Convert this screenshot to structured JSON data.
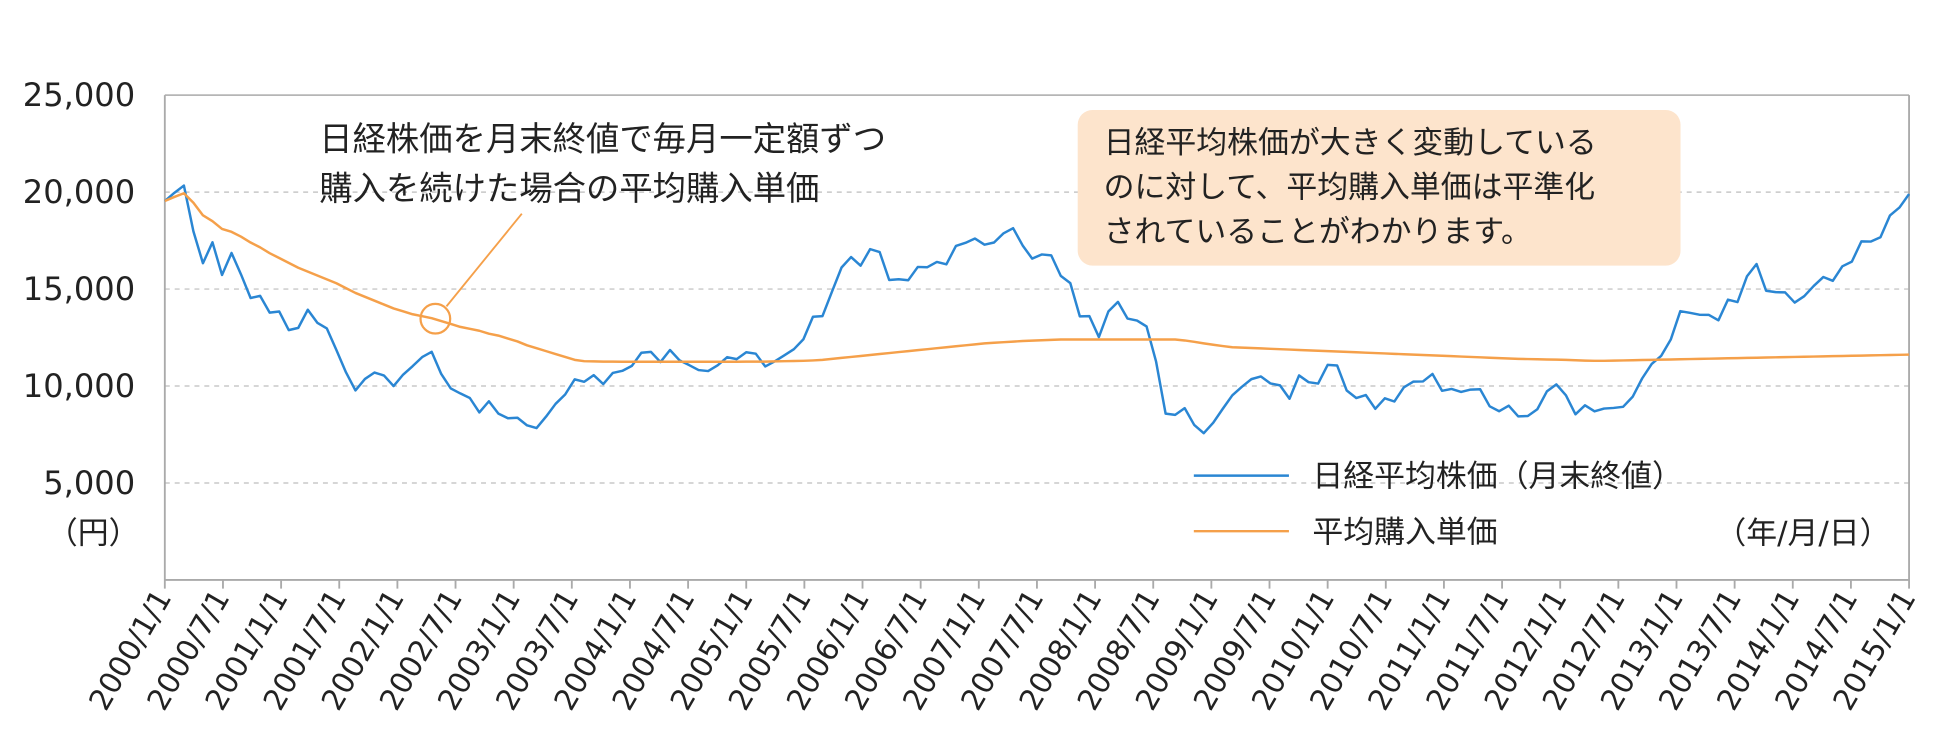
{
  "chart_data": {
    "type": "line",
    "unit_label": "（円）",
    "x_unit_label": "（年/月/日）",
    "annotation": [
      "日経株価を月末終値で毎月一定額ずつ",
      "購入を続けた場合の平均購入単価"
    ],
    "callout": [
      "日経平均株価が大きく変動している",
      "のに対して、平均購入単価は平準化",
      "されていることがわかります。"
    ],
    "ylim": [
      0,
      25000
    ],
    "yticks": [
      {
        "value": 5000,
        "label": "5,000"
      },
      {
        "value": 10000,
        "label": "10,000"
      },
      {
        "value": 15000,
        "label": "15,000"
      },
      {
        "value": 20000,
        "label": "20,000"
      },
      {
        "value": 25000,
        "label": "25,000"
      }
    ],
    "grid": true,
    "xticks": [
      "2000/1/1",
      "2000/7/1",
      "2001/1/1",
      "2001/7/1",
      "2002/1/1",
      "2002/7/1",
      "2003/1/1",
      "2003/7/1",
      "2004/1/1",
      "2004/7/1",
      "2005/1/1",
      "2005/7/1",
      "2006/1/1",
      "2006/7/1",
      "2007/1/1",
      "2007/7/1",
      "2008/1/1",
      "2008/7/1",
      "2009/1/1",
      "2009/7/1",
      "2010/1/1",
      "2010/7/1",
      "2011/1/1",
      "2011/7/1",
      "2012/1/1",
      "2012/7/1",
      "2013/1/1",
      "2013/7/1",
      "2014/1/1",
      "2014/7/1",
      "2015/1/1"
    ],
    "x": [
      "2000/1/1",
      "2000/2/1",
      "2000/3/1",
      "2000/4/1",
      "2000/5/1",
      "2000/6/1",
      "2000/7/1",
      "2000/8/1",
      "2000/9/1",
      "2000/10/1",
      "2000/11/1",
      "2000/12/1",
      "2001/1/1",
      "2001/2/1",
      "2001/3/1",
      "2001/4/1",
      "2001/5/1",
      "2001/6/1",
      "2001/7/1",
      "2001/8/1",
      "2001/9/1",
      "2001/10/1",
      "2001/11/1",
      "2001/12/1",
      "2002/1/1",
      "2002/2/1",
      "2002/3/1",
      "2002/4/1",
      "2002/5/1",
      "2002/6/1",
      "2002/7/1",
      "2002/8/1",
      "2002/9/1",
      "2002/10/1",
      "2002/11/1",
      "2002/12/1",
      "2003/1/1",
      "2003/2/1",
      "2003/3/1",
      "2003/4/1",
      "2003/5/1",
      "2003/6/1",
      "2003/7/1",
      "2003/8/1",
      "2003/9/1",
      "2003/10/1",
      "2003/11/1",
      "2003/12/1",
      "2004/1/1",
      "2004/2/1",
      "2004/3/1",
      "2004/4/1",
      "2004/5/1",
      "2004/6/1",
      "2004/7/1",
      "2004/8/1",
      "2004/9/1",
      "2004/10/1",
      "2004/11/1",
      "2004/12/1",
      "2005/1/1",
      "2005/2/1",
      "2005/3/1",
      "2005/4/1",
      "2005/5/1",
      "2005/6/1",
      "2005/7/1",
      "2005/8/1",
      "2005/9/1",
      "2005/10/1",
      "2005/11/1",
      "2005/12/1",
      "2006/1/1",
      "2006/2/1",
      "2006/3/1",
      "2006/4/1",
      "2006/5/1",
      "2006/6/1",
      "2006/7/1",
      "2006/8/1",
      "2006/9/1",
      "2006/10/1",
      "2006/11/1",
      "2006/12/1",
      "2007/1/1",
      "2007/2/1",
      "2007/3/1",
      "2007/4/1",
      "2007/5/1",
      "2007/6/1",
      "2007/7/1",
      "2007/8/1",
      "2007/9/1",
      "2007/10/1",
      "2007/11/1",
      "2007/12/1",
      "2008/1/1",
      "2008/2/1",
      "2008/3/1",
      "2008/4/1",
      "2008/5/1",
      "2008/6/1",
      "2008/7/1",
      "2008/8/1",
      "2008/9/1",
      "2008/10/1",
      "2008/11/1",
      "2008/12/1",
      "2009/1/1",
      "2009/2/1",
      "2009/3/1",
      "2009/4/1",
      "2009/5/1",
      "2009/6/1",
      "2009/7/1",
      "2009/8/1",
      "2009/9/1",
      "2009/10/1",
      "2009/11/1",
      "2009/12/1",
      "2010/1/1",
      "2010/2/1",
      "2010/3/1",
      "2010/4/1",
      "2010/5/1",
      "2010/6/1",
      "2010/7/1",
      "2010/8/1",
      "2010/9/1",
      "2010/10/1",
      "2010/11/1",
      "2010/12/1",
      "2011/1/1",
      "2011/2/1",
      "2011/3/1",
      "2011/4/1",
      "2011/5/1",
      "2011/6/1",
      "2011/7/1",
      "2011/8/1",
      "2011/9/1",
      "2011/10/1",
      "2011/11/1",
      "2011/12/1",
      "2012/1/1",
      "2012/2/1",
      "2012/3/1",
      "2012/4/1",
      "2012/5/1",
      "2012/6/1",
      "2012/7/1",
      "2012/8/1",
      "2012/9/1",
      "2012/10/1",
      "2012/11/1",
      "2012/12/1",
      "2013/1/1",
      "2013/2/1",
      "2013/3/1",
      "2013/4/1",
      "2013/5/1",
      "2013/6/1",
      "2013/7/1",
      "2013/8/1",
      "2013/9/1",
      "2013/10/1",
      "2013/11/1",
      "2013/12/1",
      "2014/1/1",
      "2014/2/1",
      "2014/3/1",
      "2014/4/1",
      "2014/5/1",
      "2014/6/1",
      "2014/7/1",
      "2014/8/1",
      "2014/9/1",
      "2014/10/1",
      "2014/11/1",
      "2014/12/1",
      "2015/1/1",
      "2015/2/1",
      "2015/3/1",
      "2015/4/1"
    ],
    "series": [
      {
        "name": "日経平均株価（月末終値）",
        "color": "#2a86d3",
        "values": [
          19540,
          19960,
          20337,
          17973,
          16332,
          17411,
          15727,
          16861,
          15747,
          14539,
          14648,
          13785,
          13843,
          12883,
          12999,
          13934,
          13262,
          12969,
          11860,
          10713,
          9774,
          10366,
          10697,
          10542,
          9997,
          10587,
          11024,
          11492,
          11763,
          10621,
          9877,
          9619,
          9383,
          8640,
          9215,
          8578,
          8339,
          8363,
          7972,
          7831,
          8424,
          9083,
          9563,
          10343,
          10219,
          10560,
          10100,
          10677,
          10783,
          11041,
          11715,
          11761,
          11236,
          11858,
          11325,
          11082,
          10823,
          10771,
          11069,
          11488,
          11387,
          11740,
          11668,
          11008,
          11276,
          11584,
          11899,
          12413,
          13574,
          13606,
          14872,
          16111,
          16649,
          16205,
          17059,
          16906,
          15467,
          15505,
          15456,
          16140,
          16127,
          16399,
          16274,
          17225,
          17383,
          17604,
          17287,
          17400,
          17875,
          18138,
          17248,
          16569,
          16785,
          16737,
          15680,
          15307,
          13592,
          13603,
          12525,
          13849,
          14338,
          13481,
          13376,
          13072,
          11259,
          8576,
          8512,
          8859,
          7994,
          7568,
          8109,
          8828,
          9522,
          9958,
          10356,
          10492,
          10133,
          10034,
          9345,
          10546,
          10198,
          10126,
          11089,
          11057,
          9768,
          9382,
          9537,
          8824,
          9369,
          9202,
          9937,
          10228,
          10237,
          10624,
          9755,
          9849,
          9693,
          9816,
          9833,
          8955,
          8700,
          8988,
          8434,
          8455,
          8802,
          9723,
          10083,
          9520,
          8542,
          9006,
          8695,
          8839,
          8870,
          8928,
          9446,
          10395,
          11138,
          11559,
          12397,
          13860,
          13774,
          13677,
          13668,
          13388,
          14455,
          14327,
          15661,
          16291,
          14914,
          14841,
          14827,
          14304,
          14632,
          15162,
          15620,
          15424,
          16173,
          16413,
          17459,
          17450,
          17674,
          18798,
          19207,
          19900
        ]
      },
      {
        "name": "平均購入単価",
        "color": "#f5a04a",
        "values": [
          19540,
          19750,
          19940,
          19450,
          18800,
          18500,
          18100,
          17950,
          17700,
          17400,
          17150,
          16850,
          16600,
          16350,
          16100,
          15900,
          15700,
          15500,
          15300,
          15050,
          14800,
          14600,
          14400,
          14200,
          14000,
          13850,
          13700,
          13600,
          13500,
          13350,
          13200,
          13050,
          12950,
          12850,
          12700,
          12600,
          12450,
          12300,
          12100,
          11950,
          11800,
          11650,
          11500,
          11350,
          11280,
          11270,
          11260,
          11260,
          11250,
          11250,
          11250,
          11250,
          11250,
          11250,
          11250,
          11250,
          11250,
          11250,
          11250,
          11250,
          11250,
          11260,
          11260,
          11260,
          11270,
          11280,
          11290,
          11300,
          11320,
          11350,
          11400,
          11450,
          11500,
          11550,
          11600,
          11650,
          11700,
          11750,
          11800,
          11850,
          11900,
          11950,
          12000,
          12050,
          12100,
          12150,
          12200,
          12230,
          12260,
          12290,
          12320,
          12340,
          12360,
          12380,
          12400,
          12400,
          12400,
          12400,
          12400,
          12400,
          12400,
          12400,
          12400,
          12400,
          12400,
          12400,
          12400,
          12350,
          12280,
          12200,
          12130,
          12060,
          12000,
          11980,
          11960,
          11940,
          11920,
          11900,
          11880,
          11860,
          11840,
          11820,
          11800,
          11780,
          11760,
          11740,
          11720,
          11700,
          11680,
          11660,
          11640,
          11620,
          11600,
          11580,
          11560,
          11540,
          11520,
          11500,
          11480,
          11460,
          11440,
          11420,
          11400,
          11390,
          11380,
          11370,
          11360,
          11350,
          11330,
          11310,
          11300,
          11300,
          11310,
          11320,
          11330,
          11340,
          11350,
          11360,
          11370,
          11380,
          11390,
          11400,
          11410,
          11420,
          11430,
          11440,
          11450,
          11460,
          11470,
          11480,
          11490,
          11500,
          11510,
          11520,
          11530,
          11540,
          11550,
          11560,
          11570,
          11580,
          11590,
          11600,
          11610,
          11620
        ]
      }
    ]
  }
}
